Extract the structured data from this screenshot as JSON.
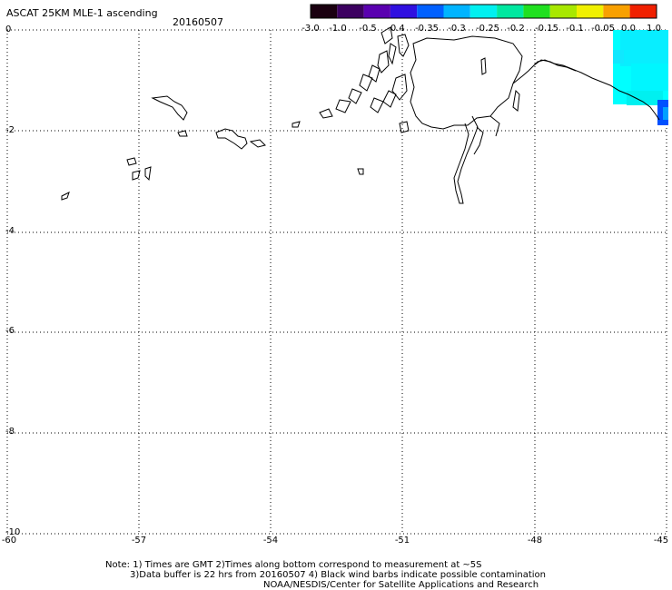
{
  "title": "ASCAT 25KM MLE-1 ascending",
  "date": "20160507",
  "colorbar": {
    "labels": [
      "-3.0",
      "-1.0",
      "-0.5",
      "-0.4",
      "-0.35",
      "-0.3",
      "-0.25",
      "-0.2",
      "-0.15",
      "-0.1",
      "-0.05",
      "0.0",
      "1.0"
    ],
    "colors": [
      "#1a0010",
      "#3c0060",
      "#5a00b0",
      "#3010e0",
      "#0060ff",
      "#00b4ff",
      "#00f0f0",
      "#00e8a0",
      "#20e020",
      "#a8e800",
      "#f0f000",
      "#f8a000",
      "#f02000"
    ]
  },
  "axes": {
    "x_ticks": [
      "-60",
      "-57",
      "-54",
      "-51",
      "-48",
      "-45"
    ],
    "y_ticks": [
      "0",
      "-2",
      "-4",
      "-6",
      "-8",
      "-10"
    ]
  },
  "notes": {
    "line1": "Note: 1) Times are GMT 2)Times along bottom correspond to measurement at ~5S",
    "line2": "3)Data buffer is 22 hrs from 20160507 4) Black wind barbs indicate possible contamination",
    "line3": "NOAA/NESDIS/Center for Satellite Applications and Research"
  }
}
